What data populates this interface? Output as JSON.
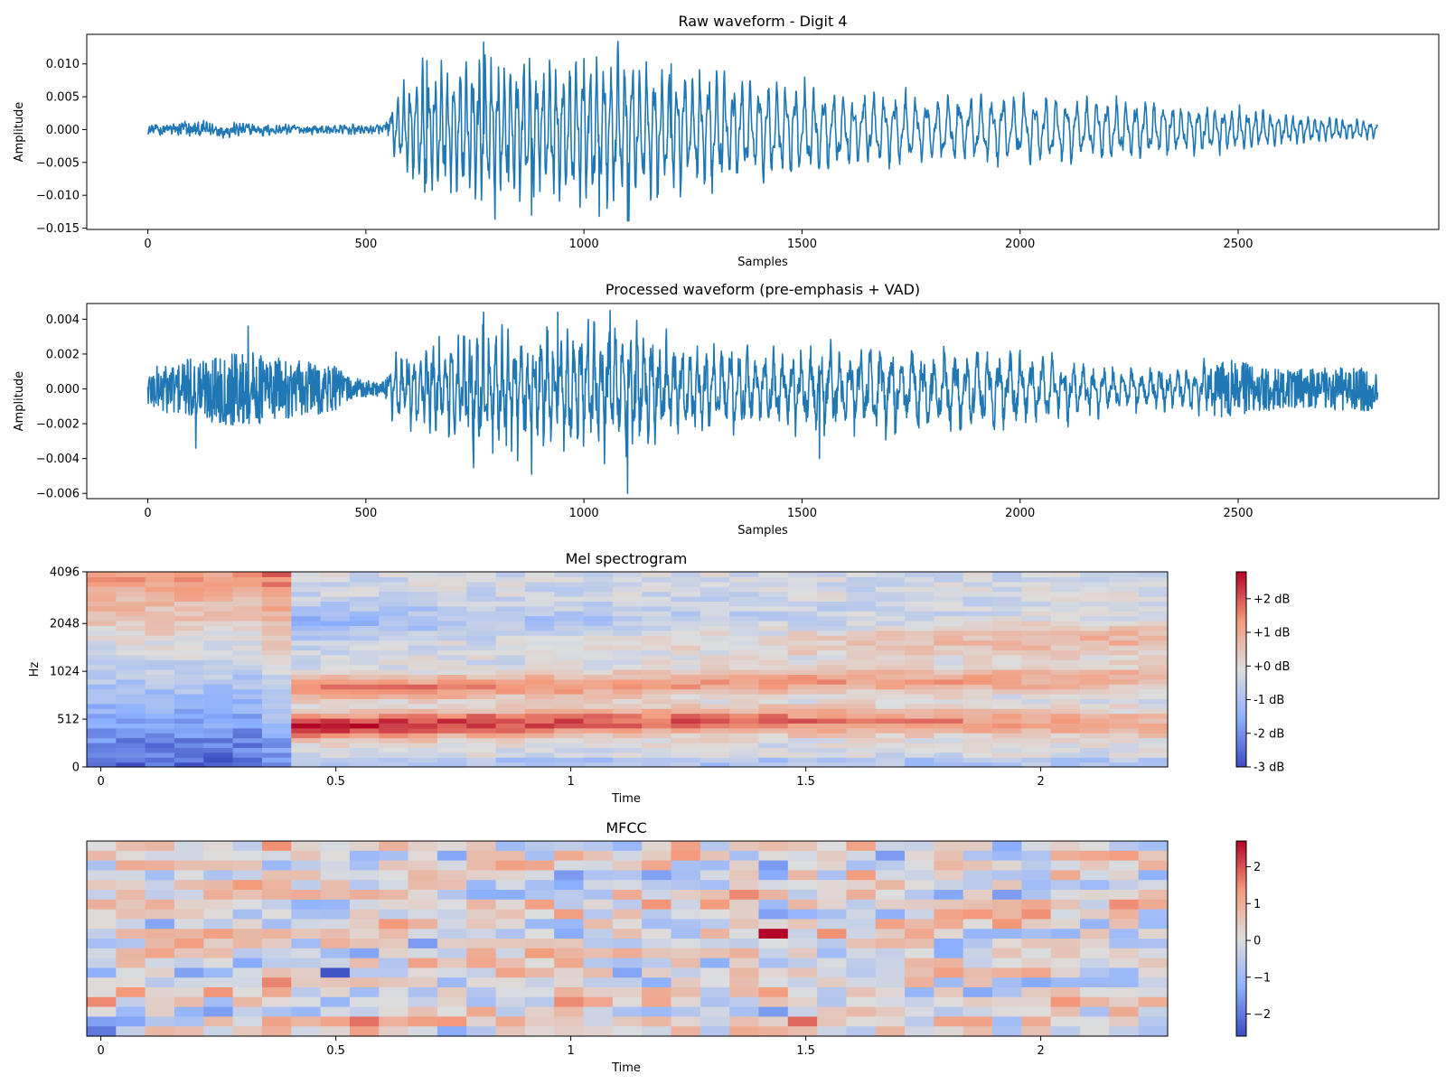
{
  "chart_data": [
    {
      "id": "raw",
      "type": "line",
      "title": "Raw waveform - Digit 4",
      "xlabel": "Samples",
      "ylabel": "Amplitude",
      "xlim": [
        -140,
        2960
      ],
      "ylim": [
        -0.0152,
        0.0145
      ],
      "xticks": [
        0,
        500,
        1000,
        1500,
        2000,
        2500
      ],
      "xtick_labels": [
        "0",
        "500",
        "1000",
        "1500",
        "2000",
        "2500"
      ],
      "yticks": [
        -0.015,
        -0.01,
        -0.005,
        0.0,
        0.005,
        0.01
      ],
      "ytick_labels": [
        "−0.015",
        "−0.010",
        "−0.005",
        "0.000",
        "0.005",
        "0.010"
      ],
      "color": "#1f77b4",
      "n_samples": 2821,
      "envelope": [
        [
          0,
          0.0013
        ],
        [
          100,
          0.0022
        ],
        [
          300,
          0.0013
        ],
        [
          450,
          0.0012
        ],
        [
          540,
          0.0012
        ],
        [
          570,
          0.0055
        ],
        [
          620,
          0.0098
        ],
        [
          700,
          0.0105
        ],
        [
          760,
          0.0125
        ],
        [
          850,
          0.0115
        ],
        [
          900,
          0.011
        ],
        [
          1000,
          0.0115
        ],
        [
          1100,
          0.0125
        ],
        [
          1200,
          0.0095
        ],
        [
          1300,
          0.0095
        ],
        [
          1400,
          0.0075
        ],
        [
          1500,
          0.0075
        ],
        [
          1600,
          0.0062
        ],
        [
          1800,
          0.0055
        ],
        [
          2000,
          0.0055
        ],
        [
          2100,
          0.0053
        ],
        [
          2300,
          0.0045
        ],
        [
          2500,
          0.0035
        ],
        [
          2650,
          0.0022
        ],
        [
          2800,
          0.0015
        ],
        [
          2820,
          0.0012
        ]
      ],
      "extremes": [
        [
          770,
          0.0133
        ],
        [
          880,
          -0.013
        ],
        [
          1035,
          -0.0132
        ],
        [
          1100,
          -0.0139
        ],
        [
          1000,
          0.0108
        ],
        [
          640,
          0.0105
        ],
        [
          1200,
          0.01
        ],
        [
          635,
          -0.0095
        ]
      ]
    },
    {
      "id": "processed",
      "type": "line",
      "title": "Processed waveform (pre-emphasis + VAD)",
      "xlabel": "Samples",
      "ylabel": "Amplitude",
      "xlim": [
        -140,
        2960
      ],
      "ylim": [
        -0.0063,
        0.0049
      ],
      "xticks": [
        0,
        500,
        1000,
        1500,
        2000,
        2500
      ],
      "xtick_labels": [
        "0",
        "500",
        "1000",
        "1500",
        "2000",
        "2500"
      ],
      "yticks": [
        -0.006,
        -0.004,
        -0.002,
        0.0,
        0.002,
        0.004
      ],
      "ytick_labels": [
        "−0.006",
        "−0.004",
        "−0.002",
        "0.000",
        "0.002",
        "0.004"
      ],
      "color": "#1f77b4",
      "n_samples": 2821,
      "envelope": [
        [
          0,
          0.0015
        ],
        [
          100,
          0.0022
        ],
        [
          230,
          0.0028
        ],
        [
          300,
          0.0022
        ],
        [
          420,
          0.0018
        ],
        [
          470,
          0.0008
        ],
        [
          540,
          0.0005
        ],
        [
          560,
          0.0016
        ],
        [
          650,
          0.0022
        ],
        [
          760,
          0.0034
        ],
        [
          900,
          0.0032
        ],
        [
          1000,
          0.0035
        ],
        [
          1100,
          0.0035
        ],
        [
          1200,
          0.0025
        ],
        [
          1400,
          0.0022
        ],
        [
          1500,
          0.0022
        ],
        [
          1700,
          0.0022
        ],
        [
          2000,
          0.002
        ],
        [
          2200,
          0.0012
        ],
        [
          2400,
          0.0012
        ],
        [
          2460,
          0.0022
        ],
        [
          2600,
          0.0014
        ],
        [
          2800,
          0.0016
        ],
        [
          2820,
          0.001
        ]
      ],
      "extremes": [
        [
          770,
          0.0044
        ],
        [
          1060,
          0.0045
        ],
        [
          1100,
          -0.006
        ],
        [
          880,
          -0.0049
        ],
        [
          940,
          0.0044
        ],
        [
          230,
          0.0036
        ],
        [
          110,
          -0.0034
        ],
        [
          1540,
          -0.004
        ]
      ]
    },
    {
      "id": "mel",
      "type": "heatmap",
      "title": "Mel spectrogram",
      "xlabel": "Time",
      "ylabel": "Hz",
      "xlim": [
        -0.03,
        2.27
      ],
      "xticks": [
        0,
        0.5,
        1,
        1.5,
        2
      ],
      "xtick_labels": [
        "0",
        "0.5",
        "1",
        "1.5",
        "2"
      ],
      "yticks": [
        0,
        512,
        1024,
        2048,
        4096
      ],
      "ytick_labels": [
        "0",
        "512",
        "1024",
        "2048",
        "4096"
      ],
      "ytick_positions": [
        0.0,
        0.245,
        0.49,
        0.735,
        1.0
      ],
      "n_frames": 37,
      "n_bands": 40,
      "colormap": "coolwarm",
      "vmin": -3,
      "vmax": 2.8,
      "colorbar_ticks": [
        -3,
        -2,
        -1,
        0,
        1,
        2
      ],
      "colorbar_labels": [
        "-3 dB",
        "-2 dB",
        "-1 dB",
        "+0 dB",
        "+1 dB",
        "+2 dB"
      ]
    },
    {
      "id": "mfcc",
      "type": "heatmap",
      "title": "MFCC",
      "xlabel": "Time",
      "ylabel": "",
      "xlim": [
        -0.03,
        2.27
      ],
      "xticks": [
        0,
        0.5,
        1,
        1.5,
        2
      ],
      "xtick_labels": [
        "0",
        "0.5",
        "1",
        "1.5",
        "2"
      ],
      "n_frames": 37,
      "n_coeffs": 20,
      "colormap": "coolwarm",
      "vmin": -2.6,
      "vmax": 2.7,
      "colorbar_ticks": [
        -2,
        -1,
        0,
        1,
        2
      ],
      "colorbar_labels": [
        "−2",
        "−1",
        "0",
        "1",
        "2"
      ]
    }
  ]
}
